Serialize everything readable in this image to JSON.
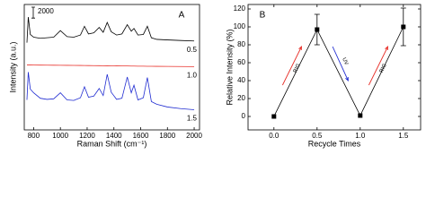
{
  "chart_data": [
    {
      "type": "spectra",
      "panel_label": "A",
      "x_title": "Raman Shift (cm⁻¹)",
      "y_title": "Intensity (a.u.)",
      "xlim": [
        730,
        2040
      ],
      "ylim": [
        0,
        23000
      ],
      "xticks": [
        800,
        1000,
        1200,
        1400,
        1600,
        1800,
        2000
      ],
      "scale_bar": 2000,
      "x": [
        750,
        760,
        775,
        800,
        850,
        900,
        950,
        1000,
        1050,
        1100,
        1150,
        1180,
        1210,
        1250,
        1290,
        1320,
        1350,
        1380,
        1420,
        1460,
        1500,
        1530,
        1550,
        1580,
        1620,
        1650,
        1680,
        1720,
        1800,
        1900,
        2000
      ],
      "series": [
        {
          "name": "0.5",
          "color": "#000000",
          "values": [
            16000,
            20700,
            17500,
            17000,
            16800,
            16900,
            17000,
            18200,
            17100,
            17000,
            17400,
            19000,
            17600,
            17800,
            18800,
            17900,
            19700,
            18000,
            17400,
            17600,
            19300,
            18100,
            18600,
            17400,
            17500,
            19000,
            16900,
            16600,
            16500,
            16400,
            16300
          ]
        },
        {
          "name": "1.0",
          "color": "#e8302a",
          "values": [
            11900,
            11900,
            11900,
            11890,
            11880,
            11870,
            11860,
            11850,
            11840,
            11830,
            11820,
            11810,
            11800,
            11790,
            11780,
            11770,
            11760,
            11750,
            11740,
            11730,
            11720,
            11710,
            11700,
            11690,
            11680,
            11670,
            11660,
            11650,
            11640,
            11620,
            11600
          ]
        },
        {
          "name": "1.5",
          "color": "#1f2bd1",
          "values": [
            5500,
            10600,
            7500,
            6800,
            5800,
            5600,
            5700,
            6800,
            5500,
            5400,
            5900,
            7900,
            6000,
            6200,
            7600,
            6300,
            10200,
            6900,
            5600,
            5800,
            9700,
            6800,
            8200,
            5500,
            5900,
            9600,
            5200,
            4700,
            4200,
            3900,
            3700
          ]
        }
      ]
    },
    {
      "type": "errorline",
      "panel_label": "B",
      "x_title": "Recycle Times",
      "y_title": "Relative Intensity (%)",
      "xlim": [
        -0.3,
        1.7
      ],
      "ylim": [
        -15,
        125
      ],
      "xticks": [
        {
          "value": 0,
          "label": "0.0"
        },
        {
          "value": 0.5,
          "label": "0.5"
        },
        {
          "value": 1,
          "label": "1.0"
        },
        {
          "value": 1.5,
          "label": "1.5"
        }
      ],
      "yticks": [
        0,
        20,
        40,
        60,
        80,
        100,
        120
      ],
      "x": [
        0,
        0.5,
        1,
        1.5
      ],
      "series": [
        {
          "color": "#000000",
          "values": [
            0,
            97,
            1,
            100
          ],
          "errors": [
            0,
            17,
            0,
            21
          ]
        }
      ],
      "annotations": [
        "RIG",
        "UV",
        "RIG"
      ]
    }
  ]
}
